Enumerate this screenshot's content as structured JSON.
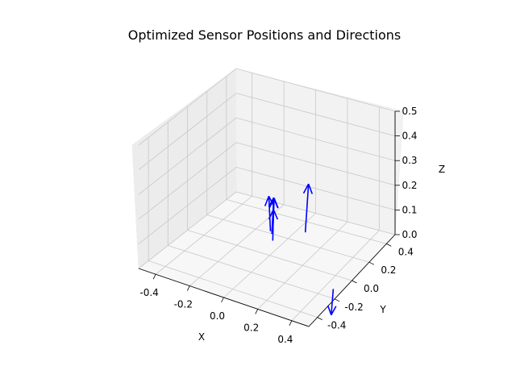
{
  "chart_data": {
    "type": "quiver3d",
    "title": "Optimized Sensor Positions and Directions",
    "xlabel": "X",
    "ylabel": "Y",
    "zlabel": "Z",
    "xlim": [
      -0.5,
      0.5
    ],
    "ylim": [
      -0.5,
      0.5
    ],
    "zlim": [
      0.0,
      0.5
    ],
    "xticks": [
      "-0.4",
      "-0.2",
      "0.0",
      "0.2",
      "0.4"
    ],
    "yticks": [
      "-0.4",
      "-0.2",
      "0.0",
      "0.2",
      "0.4"
    ],
    "zticks": [
      "0.0",
      "0.1",
      "0.2",
      "0.3",
      "0.4",
      "0.5"
    ],
    "grid": true,
    "arrow_color": "#0000ff",
    "arrows": [
      {
        "x": 0.05,
        "y": 0.3,
        "z": 0.0,
        "u": 0.02,
        "v": 0.0,
        "w": 0.2
      },
      {
        "x": -0.1,
        "y": 0.2,
        "z": 0.0,
        "u": 0.0,
        "v": 0.02,
        "w": 0.14
      },
      {
        "x": -0.12,
        "y": 0.22,
        "z": 0.0,
        "u": -0.01,
        "v": 0.0,
        "w": 0.14
      },
      {
        "x": -0.1,
        "y": 0.21,
        "z": 0.0,
        "u": -0.02,
        "v": 0.05,
        "w": 0.12
      },
      {
        "x": -0.06,
        "y": 0.14,
        "z": 0.0,
        "u": -0.03,
        "v": 0.06,
        "w": 0.1
      },
      {
        "x": 0.45,
        "y": -0.12,
        "z": 0.0,
        "u": 0.05,
        "v": -0.12,
        "w": -0.05
      }
    ]
  }
}
